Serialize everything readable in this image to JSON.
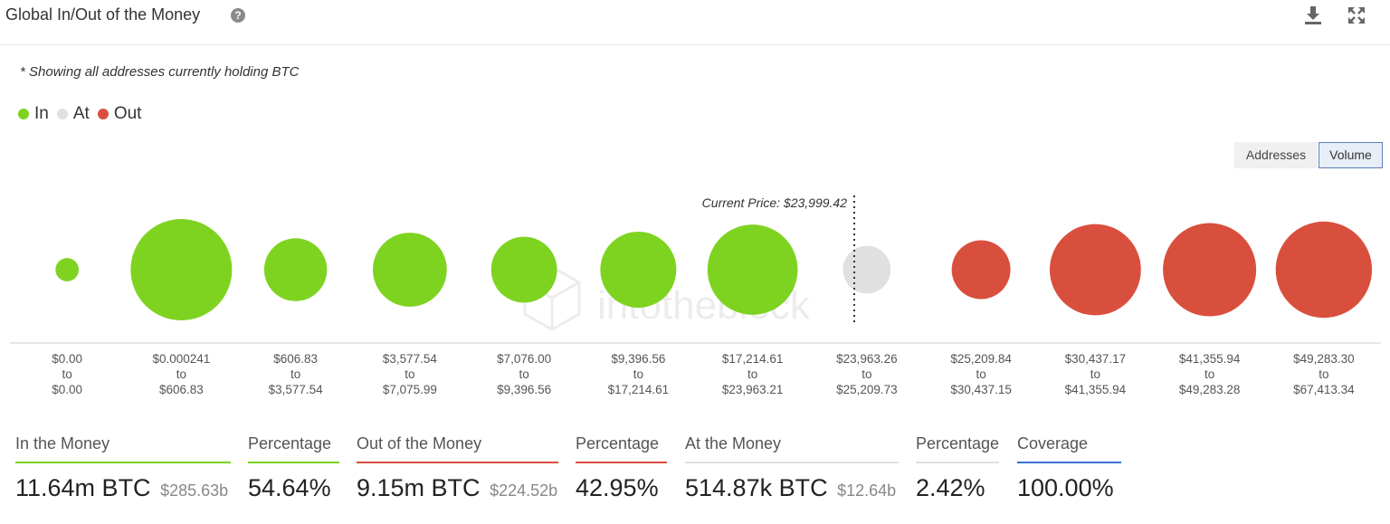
{
  "header": {
    "title": "Global In/Out of the Money",
    "help_icon": "help-circle-icon",
    "download_icon": "download-icon",
    "expand_icon": "fullscreen-icon"
  },
  "note": "* Showing all addresses currently holding BTC",
  "legend": [
    {
      "label": "In",
      "color": "#7ed321"
    },
    {
      "label": "At",
      "color": "#e0e0e0"
    },
    {
      "label": "Out",
      "color": "#d94f3d"
    }
  ],
  "toggles": {
    "addresses": "Addresses",
    "volume": "Volume",
    "selected": "volume"
  },
  "chart_data": {
    "type": "scatter",
    "encoding": "bubble size = volume held per price range",
    "current_price_label": "Current Price: $23,999.42",
    "current_price": 23999.42,
    "watermark": "intotheblock",
    "categories": [
      {
        "from": "$0.00",
        "to_word": "to",
        "to": "$0.00",
        "status": "in",
        "size": 0.23
      },
      {
        "from": "$0.000241",
        "to_word": "to",
        "to": "$606.83",
        "status": "in",
        "size": 1.0
      },
      {
        "from": "$606.83",
        "to_word": "to",
        "to": "$3,577.54",
        "status": "in",
        "size": 0.62
      },
      {
        "from": "$3,577.54",
        "to_word": "to",
        "to": "$7,075.99",
        "status": "in",
        "size": 0.73
      },
      {
        "from": "$7,076.00",
        "to_word": "to",
        "to": "$9,396.56",
        "status": "in",
        "size": 0.65
      },
      {
        "from": "$9,396.56",
        "to_word": "to",
        "to": "$17,214.61",
        "status": "in",
        "size": 0.75
      },
      {
        "from": "$17,214.61",
        "to_word": "to",
        "to": "$23,963.21",
        "status": "in",
        "size": 0.89
      },
      {
        "from": "$23,963.26",
        "to_word": "to",
        "to": "$25,209.73",
        "status": "at",
        "size": 0.47
      },
      {
        "from": "$25,209.84",
        "to_word": "to",
        "to": "$30,437.15",
        "status": "out",
        "size": 0.58
      },
      {
        "from": "$30,437.17",
        "to_word": "to",
        "to": "$41,355.94",
        "status": "out",
        "size": 0.9
      },
      {
        "from": "$41,355.94",
        "to_word": "to",
        "to": "$49,283.28",
        "status": "out",
        "size": 0.92
      },
      {
        "from": "$49,283.30",
        "to_word": "to",
        "to": "$67,413.34",
        "status": "out",
        "size": 0.95
      }
    ],
    "colors": {
      "in": "#7ed321",
      "at": "#e0e0e0",
      "out": "#d94f3d"
    }
  },
  "stats": [
    {
      "label": "In the Money",
      "value": "11.64m BTC",
      "sub": "$285.63b",
      "color": "#7ed321"
    },
    {
      "label": "Percentage",
      "value": "54.64%",
      "sub": "",
      "color": "#7ed321"
    },
    {
      "label": "Out of the Money",
      "value": "9.15m BTC",
      "sub": "$224.52b",
      "color": "#d94f3d"
    },
    {
      "label": "Percentage",
      "value": "42.95%",
      "sub": "",
      "color": "#d94f3d"
    },
    {
      "label": "At the Money",
      "value": "514.87k BTC",
      "sub": "$12.64b",
      "color": "#e0e0e0"
    },
    {
      "label": "Percentage",
      "value": "2.42%",
      "sub": "",
      "color": "#e0e0e0"
    },
    {
      "label": "Coverage",
      "value": "100.00%",
      "sub": "",
      "color": "#3b6fd8"
    }
  ]
}
